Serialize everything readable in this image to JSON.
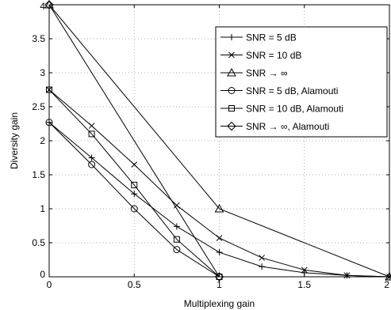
{
  "chart_data": {
    "type": "line",
    "xlabel": "Multiplexing gain",
    "ylabel": "Diversity gain",
    "xlim": [
      0,
      2
    ],
    "ylim": [
      0,
      4
    ],
    "xticks": [
      0,
      0.5,
      1,
      1.5,
      2
    ],
    "xtick_labels": [
      "0",
      "0.5",
      "1",
      "1.5",
      "2"
    ],
    "yticks": [
      0,
      0.5,
      1,
      1.5,
      2,
      2.5,
      3,
      3.5,
      4
    ],
    "ytick_labels": [
      "0",
      "0.5",
      "1",
      "1.5",
      "2",
      "2.5",
      "3",
      "3.5",
      "4"
    ],
    "grid": true,
    "legend_position": "top-right",
    "series": [
      {
        "name": "SNR = 5 dB",
        "marker": "plus",
        "x": [
          0,
          0.25,
          0.5,
          0.75,
          1,
          1.25,
          1.5,
          1.75,
          2
        ],
        "y": [
          2.27,
          1.75,
          1.22,
          0.74,
          0.36,
          0.15,
          0.06,
          0.02,
          0
        ]
      },
      {
        "name": "SNR = 10 dB",
        "marker": "x",
        "x": [
          0,
          0.25,
          0.5,
          0.75,
          1,
          1.25,
          1.5,
          1.75,
          2
        ],
        "y": [
          2.75,
          2.22,
          1.65,
          1.05,
          0.57,
          0.28,
          0.1,
          0.02,
          0
        ]
      },
      {
        "name": "SNR → ∞",
        "marker": "triangle",
        "x": [
          0,
          1,
          2
        ],
        "y": [
          4,
          1,
          0
        ]
      },
      {
        "name": "SNR = 5 dB, Alamouti",
        "marker": "circle",
        "x": [
          0,
          0.25,
          0.5,
          0.75,
          1
        ],
        "y": [
          2.27,
          1.65,
          1.0,
          0.4,
          0
        ]
      },
      {
        "name": "SNR = 10 dB, Alamouti",
        "marker": "square",
        "x": [
          0,
          0.25,
          0.5,
          0.75,
          1
        ],
        "y": [
          2.75,
          2.1,
          1.35,
          0.55,
          0
        ]
      },
      {
        "name": "SNR → ∞, Alamouti",
        "marker": "diamond",
        "x": [
          0,
          1
        ],
        "y": [
          4,
          0
        ]
      }
    ]
  }
}
